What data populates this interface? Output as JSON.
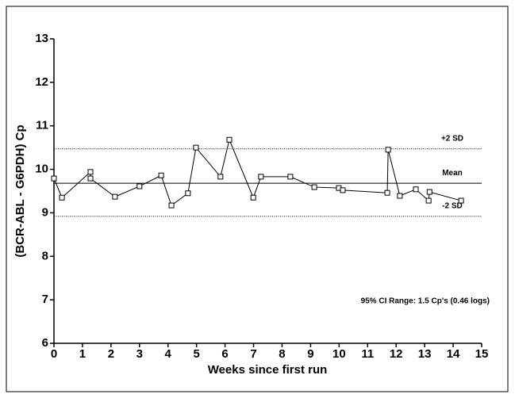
{
  "chart_data": {
    "type": "line",
    "x_label": "Weeks since first run",
    "y_label": "(BCR-ABL - G6PDH) Cp",
    "annotation": "95% CI Range: 1.5 Cp's (0.46 logs)",
    "xlim": [
      0,
      15
    ],
    "ylim": [
      6,
      13
    ],
    "xticks": [
      0,
      1,
      2,
      3,
      4,
      5,
      6,
      7,
      8,
      9,
      10,
      11,
      12,
      13,
      14,
      15
    ],
    "yticks": [
      6,
      7,
      8,
      9,
      10,
      11,
      12,
      13
    ],
    "reference_lines": [
      {
        "label": "+2 SD",
        "value": 10.47,
        "style": "dotted"
      },
      {
        "label": "Mean",
        "value": 9.68,
        "style": "solid"
      },
      {
        "label": "-2 SD",
        "value": 8.92,
        "style": "dotted"
      }
    ],
    "series": [
      {
        "color": "#000000",
        "x": [
          0,
          0.28,
          1.28,
          1.28,
          2.14,
          3.0,
          3.76,
          4.12,
          4.7,
          4.98,
          5.84,
          6.15,
          6.99,
          7.26,
          8.29,
          9.13,
          9.99,
          10.13,
          11.69,
          11.72,
          12.13,
          12.69,
          13.14,
          13.17,
          14.28
        ],
        "values": [
          9.79,
          9.35,
          9.94,
          9.79,
          9.37,
          9.61,
          9.86,
          9.17,
          9.45,
          10.5,
          9.83,
          10.68,
          9.35,
          9.83,
          9.83,
          9.59,
          9.57,
          9.52,
          9.46,
          10.45,
          9.39,
          9.54,
          9.28,
          9.48,
          9.28
        ]
      }
    ]
  }
}
